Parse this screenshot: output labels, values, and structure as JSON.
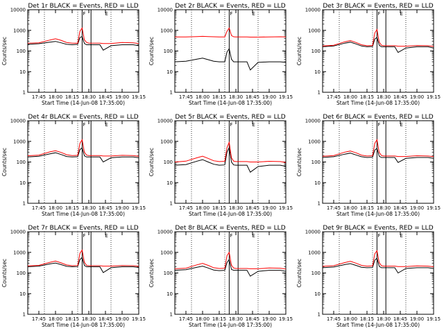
{
  "figure": {
    "shared": {
      "xlabel": "Start Time (14-Jun-08 17:35:00)",
      "ylabel": "Counts/sec",
      "x_tick_labels": [
        "17:45",
        "18:00",
        "18:15",
        "18:30",
        "18:45",
        "19:00",
        "19:15"
      ],
      "y_tick_labels": [
        "1",
        "10",
        "100",
        "1000",
        "10000"
      ],
      "flag_labels": [
        "F",
        "E"
      ],
      "series_colors": {
        "events": "#000000",
        "lld": "#ff0000"
      },
      "background": "#ffffff"
    }
  },
  "chart_data": [
    {
      "type": "line",
      "title": "Det 1r BLACK = Events, RED = LLD",
      "x": [
        "17:35",
        "17:45",
        "17:55",
        "18:00",
        "18:05",
        "18:10",
        "18:15",
        "18:20",
        "18:22",
        "18:24",
        "18:26",
        "18:28",
        "18:30",
        "18:32",
        "18:35",
        "18:40",
        "18:43",
        "18:50",
        "19:00",
        "19:10",
        "19:15"
      ],
      "series": [
        {
          "key": "events",
          "values": [
            210,
            225,
            270,
            290,
            250,
            210,
            200,
            210,
            450,
            500,
            230,
            200,
            200,
            200,
            200,
            200,
            110,
            180,
            200,
            200,
            180
          ]
        },
        {
          "key": "lld",
          "values": [
            240,
            250,
            340,
            390,
            330,
            260,
            240,
            240,
            900,
            1300,
            350,
            260,
            240,
            240,
            240,
            240,
            230,
            230,
            260,
            250,
            230
          ]
        }
      ],
      "ylim": [
        1,
        10000
      ],
      "yscale": "log",
      "xlim": [
        "17:35",
        "19:15"
      ],
      "xlabel": "Start Time (14-Jun-08 17:35:00)",
      "ylabel": "Counts/sec",
      "grid": false
    },
    {
      "type": "line",
      "title": "Det 2r BLACK = Events, RED = LLD",
      "x": [
        "17:35",
        "17:45",
        "17:55",
        "18:00",
        "18:05",
        "18:10",
        "18:15",
        "18:20",
        "18:22",
        "18:24",
        "18:26",
        "18:28",
        "18:30",
        "18:32",
        "18:35",
        "18:40",
        "18:43",
        "18:50",
        "19:00",
        "19:10",
        "19:15"
      ],
      "series": [
        {
          "key": "events",
          "values": [
            30,
            32,
            40,
            45,
            38,
            32,
            30,
            30,
            90,
            130,
            40,
            30,
            30,
            30,
            30,
            30,
            12,
            28,
            30,
            30,
            28
          ]
        },
        {
          "key": "lld",
          "values": [
            480,
            480,
            500,
            510,
            500,
            490,
            480,
            480,
            900,
            1300,
            560,
            490,
            480,
            480,
            480,
            480,
            470,
            470,
            480,
            490,
            480
          ]
        }
      ],
      "ylim": [
        1,
        10000
      ],
      "yscale": "log",
      "xlim": [
        "17:35",
        "19:15"
      ],
      "xlabel": "Start Time (14-Jun-08 17:35:00)",
      "ylabel": "Counts/sec",
      "grid": false
    },
    {
      "type": "line",
      "title": "Det 3r BLACK = Events, RED = LLD",
      "x": [
        "17:35",
        "17:45",
        "17:55",
        "18:00",
        "18:05",
        "18:10",
        "18:15",
        "18:20",
        "18:22",
        "18:24",
        "18:26",
        "18:28",
        "18:30",
        "18:32",
        "18:35",
        "18:40",
        "18:43",
        "18:50",
        "19:00",
        "19:10",
        "19:15"
      ],
      "series": [
        {
          "key": "events",
          "values": [
            160,
            175,
            240,
            270,
            220,
            175,
            160,
            165,
            380,
            460,
            190,
            160,
            160,
            160,
            160,
            160,
            85,
            140,
            160,
            160,
            140
          ]
        },
        {
          "key": "lld",
          "values": [
            175,
            190,
            280,
            320,
            260,
            200,
            180,
            185,
            750,
            1100,
            270,
            190,
            180,
            180,
            180,
            180,
            170,
            170,
            185,
            180,
            165
          ]
        }
      ],
      "ylim": [
        1,
        10000
      ],
      "yscale": "log",
      "xlim": [
        "17:35",
        "19:15"
      ],
      "xlabel": "Start Time (14-Jun-08 17:35:00)",
      "ylabel": "Counts/sec",
      "grid": false
    },
    {
      "type": "line",
      "title": "Det 4r BLACK = Events, RED = LLD",
      "x": [
        "17:35",
        "17:45",
        "17:55",
        "18:00",
        "18:05",
        "18:10",
        "18:15",
        "18:20",
        "18:22",
        "18:24",
        "18:26",
        "18:28",
        "18:30",
        "18:32",
        "18:35",
        "18:40",
        "18:43",
        "18:50",
        "19:00",
        "19:10",
        "19:15"
      ],
      "series": [
        {
          "key": "events",
          "values": [
            175,
            190,
            250,
            280,
            230,
            185,
            175,
            180,
            400,
            480,
            200,
            175,
            175,
            175,
            175,
            175,
            100,
            160,
            175,
            175,
            160
          ]
        },
        {
          "key": "lld",
          "values": [
            200,
            215,
            310,
            350,
            290,
            225,
            205,
            210,
            800,
            1200,
            300,
            215,
            205,
            205,
            205,
            205,
            195,
            195,
            210,
            205,
            190
          ]
        }
      ],
      "ylim": [
        1,
        10000
      ],
      "yscale": "log",
      "xlim": [
        "17:35",
        "19:15"
      ],
      "xlabel": "Start Time (14-Jun-08 17:35:00)",
      "ylabel": "Counts/sec",
      "grid": false
    },
    {
      "type": "line",
      "title": "Det 5r BLACK = Events, RED = LLD",
      "x": [
        "17:35",
        "17:45",
        "17:55",
        "18:00",
        "18:05",
        "18:10",
        "18:15",
        "18:20",
        "18:22",
        "18:24",
        "18:26",
        "18:28",
        "18:30",
        "18:32",
        "18:35",
        "18:40",
        "18:43",
        "18:50",
        "19:00",
        "19:10",
        "19:15"
      ],
      "series": [
        {
          "key": "events",
          "values": [
            70,
            75,
            110,
            130,
            100,
            78,
            70,
            72,
            300,
            500,
            100,
            72,
            70,
            70,
            70,
            70,
            32,
            60,
            70,
            70,
            62
          ]
        },
        {
          "key": "lld",
          "values": [
            100,
            110,
            160,
            190,
            150,
            115,
            105,
            108,
            500,
            900,
            160,
            110,
            105,
            105,
            105,
            105,
            100,
            100,
            108,
            105,
            95
          ]
        }
      ],
      "ylim": [
        1,
        10000
      ],
      "yscale": "log",
      "xlim": [
        "17:35",
        "19:15"
      ],
      "xlabel": "Start Time (14-Jun-08 17:35:00)",
      "ylabel": "Counts/sec",
      "grid": false
    },
    {
      "type": "line",
      "title": "Det 6r BLACK = Events, RED = LLD",
      "x": [
        "17:35",
        "17:45",
        "17:55",
        "18:00",
        "18:05",
        "18:10",
        "18:15",
        "18:20",
        "18:22",
        "18:24",
        "18:26",
        "18:28",
        "18:30",
        "18:32",
        "18:35",
        "18:40",
        "18:43",
        "18:50",
        "19:00",
        "19:10",
        "19:15"
      ],
      "series": [
        {
          "key": "events",
          "values": [
            165,
            180,
            240,
            270,
            220,
            180,
            165,
            170,
            380,
            460,
            190,
            165,
            165,
            165,
            165,
            165,
            95,
            150,
            165,
            165,
            150
          ]
        },
        {
          "key": "lld",
          "values": [
            190,
            205,
            300,
            340,
            280,
            215,
            195,
            200,
            800,
            1200,
            290,
            205,
            195,
            195,
            195,
            195,
            185,
            185,
            200,
            195,
            180
          ]
        }
      ],
      "ylim": [
        1,
        10000
      ],
      "yscale": "log",
      "xlim": [
        "17:35",
        "19:15"
      ],
      "xlabel": "Start Time (14-Jun-08 17:35:00)",
      "ylabel": "Counts/sec",
      "grid": false
    },
    {
      "type": "line",
      "title": "Det 7r BLACK = Events, RED = LLD",
      "x": [
        "17:35",
        "17:45",
        "17:55",
        "18:00",
        "18:05",
        "18:10",
        "18:15",
        "18:20",
        "18:22",
        "18:24",
        "18:26",
        "18:28",
        "18:30",
        "18:32",
        "18:35",
        "18:40",
        "18:43",
        "18:50",
        "19:00",
        "19:10",
        "19:15"
      ],
      "series": [
        {
          "key": "events",
          "values": [
            200,
            215,
            275,
            305,
            255,
            210,
            200,
            205,
            450,
            560,
            230,
            200,
            200,
            200,
            200,
            200,
            105,
            180,
            200,
            200,
            185
          ]
        },
        {
          "key": "lld",
          "values": [
            220,
            235,
            330,
            380,
            310,
            245,
            225,
            230,
            900,
            1300,
            330,
            235,
            225,
            225,
            225,
            225,
            215,
            215,
            230,
            225,
            210
          ]
        }
      ],
      "ylim": [
        1,
        10000
      ],
      "yscale": "log",
      "xlim": [
        "17:35",
        "19:15"
      ],
      "xlabel": "Start Time (14-Jun-08 17:35:00)",
      "ylabel": "Counts/sec",
      "grid": false
    },
    {
      "type": "line",
      "title": "Det 8r BLACK = Events, RED = LLD",
      "x": [
        "17:35",
        "17:45",
        "17:55",
        "18:00",
        "18:05",
        "18:10",
        "18:15",
        "18:20",
        "18:22",
        "18:24",
        "18:26",
        "18:28",
        "18:30",
        "18:32",
        "18:35",
        "18:40",
        "18:43",
        "18:50",
        "19:00",
        "19:10",
        "19:15"
      ],
      "series": [
        {
          "key": "events",
          "values": [
            135,
            145,
            190,
            215,
            175,
            140,
            130,
            135,
            320,
            450,
            150,
            135,
            135,
            135,
            135,
            135,
            70,
            120,
            135,
            135,
            120
          ]
        },
        {
          "key": "lld",
          "values": [
            160,
            170,
            250,
            290,
            235,
            180,
            165,
            170,
            700,
            1000,
            240,
            175,
            165,
            165,
            165,
            165,
            160,
            160,
            175,
            170,
            155
          ]
        }
      ],
      "ylim": [
        1,
        10000
      ],
      "yscale": "log",
      "xlim": [
        "17:35",
        "19:15"
      ],
      "xlabel": "Start Time (14-Jun-08 17:35:00)",
      "ylabel": "Counts/sec",
      "grid": false
    },
    {
      "type": "line",
      "title": "Det 9r BLACK = Events, RED = LLD",
      "x": [
        "17:35",
        "17:45",
        "17:55",
        "18:00",
        "18:05",
        "18:10",
        "18:15",
        "18:20",
        "18:22",
        "18:24",
        "18:26",
        "18:28",
        "18:30",
        "18:32",
        "18:35",
        "18:40",
        "18:43",
        "18:50",
        "19:00",
        "19:10",
        "19:15"
      ],
      "series": [
        {
          "key": "events",
          "values": [
            180,
            195,
            255,
            285,
            235,
            190,
            180,
            185,
            420,
            520,
            210,
            180,
            180,
            180,
            180,
            180,
            100,
            165,
            180,
            180,
            165
          ]
        },
        {
          "key": "lld",
          "values": [
            210,
            225,
            320,
            370,
            300,
            235,
            215,
            220,
            850,
            1200,
            320,
            225,
            215,
            215,
            215,
            215,
            205,
            205,
            220,
            215,
            200
          ]
        }
      ],
      "ylim": [
        1,
        10000
      ],
      "yscale": "log",
      "xlim": [
        "17:35",
        "19:15"
      ],
      "xlabel": "Start Time (14-Jun-08 17:35:00)",
      "ylabel": "Counts/sec",
      "grid": false
    }
  ]
}
